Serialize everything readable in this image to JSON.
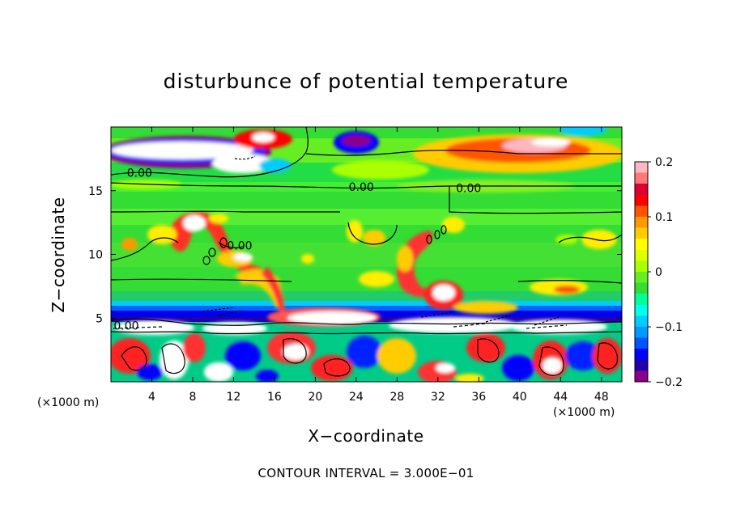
{
  "chart_data": {
    "type": "heatmap",
    "title": "disturbunce of potential temperature",
    "xlabel": "X−coordinate",
    "ylabel": "Z−coordinate",
    "x_unit": "(×1000 m)",
    "x_ticks": [
      "4",
      "8",
      "12",
      "16",
      "20",
      "24",
      "28",
      "32",
      "36",
      "40",
      "44",
      "48"
    ],
    "x_tick_values": [
      4,
      8,
      12,
      16,
      20,
      24,
      28,
      32,
      36,
      40,
      44,
      48
    ],
    "y_ticks": [
      "5",
      "10",
      "15"
    ],
    "y_tick_values": [
      5,
      10,
      15
    ],
    "xlim": [
      0,
      50
    ],
    "ylim": [
      0,
      20
    ],
    "contour_interval_text": "CONTOUR INTERVAL = 3.000E−01",
    "contour_labels": [
      {
        "text": "0.00",
        "x": 2.8,
        "y": 16.4
      },
      {
        "text": "0.00",
        "x": 24.5,
        "y": 15.3
      },
      {
        "text": "0.00",
        "x": 35.0,
        "y": 15.2
      },
      {
        "text": "0.00",
        "x": 12.6,
        "y": 10.7
      },
      {
        "text": "0.00",
        "x": 1.5,
        "y": 4.4
      }
    ],
    "colorbar": {
      "ticks": [
        "0.2",
        "0.1",
        "0",
        "−0.1",
        "−0.2"
      ],
      "tick_values": [
        0.2,
        0.1,
        0,
        -0.1,
        -0.2
      ],
      "range": [
        -0.2,
        0.2
      ],
      "colors": [
        "#8b008b",
        "#2200aa",
        "#0000ff",
        "#0055ff",
        "#0099ff",
        "#00ccff",
        "#00ffee",
        "#00ff99",
        "#33dd33",
        "#66ee22",
        "#aaff00",
        "#ddff00",
        "#ffff00",
        "#ffcc00",
        "#ff9900",
        "#ff5500",
        "#ff0000",
        "#dd0033",
        "#ff7777",
        "#ffb6c1"
      ]
    },
    "features": [
      {
        "x": 4.0,
        "y": 18.0,
        "value": -0.3
      },
      {
        "x": 8.0,
        "y": 17.2,
        "value": -0.3
      },
      {
        "x": 14.0,
        "y": 19.0,
        "value": 0.2
      },
      {
        "x": 23.0,
        "y": 19.0,
        "value": -0.25
      },
      {
        "x": 40.0,
        "y": 18.3,
        "value": 0.25
      },
      {
        "x": 22.0,
        "y": 16.2,
        "value": 0.05
      },
      {
        "x": 25.0,
        "y": 4.5,
        "value": -0.3
      },
      {
        "x": 8.0,
        "y": 11.0,
        "value": 0.3
      }
    ]
  }
}
